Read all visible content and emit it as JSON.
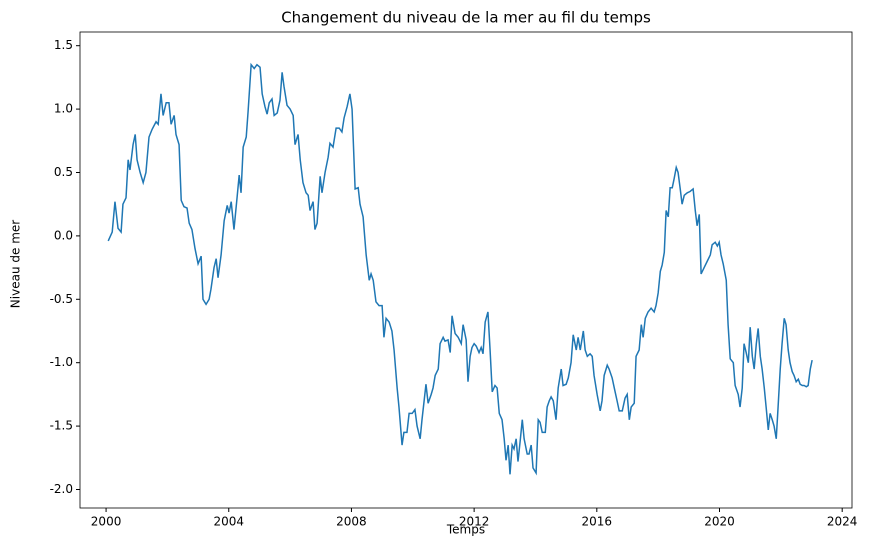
{
  "chart_data": {
    "type": "line",
    "title": "Changement du niveau de la mer au fil du temps",
    "x_label": "Temps",
    "y_label": "Niveau de mer",
    "xlim": [
      1999.15,
      2024.32
    ],
    "ylim": [
      -2.146,
      1.608
    ],
    "xticks": [
      2000,
      2004,
      2008,
      2012,
      2016,
      2020,
      2024
    ],
    "yticks": [
      {
        "value": -2,
        "label": "-2.0"
      },
      -1.5,
      {
        "value": -1,
        "label": "-1.0"
      },
      -0.5,
      {
        "value": 0,
        "label": "0.0"
      },
      0.5,
      {
        "value": 1,
        "label": "1.0"
      },
      1.5
    ],
    "x": [
      2000.07,
      2000.2,
      2000.29,
      2000.39,
      2000.49,
      2000.55,
      2000.65,
      2000.72,
      2000.78,
      2000.88,
      2000.95,
      2001.01,
      2001.11,
      2001.21,
      2001.3,
      2001.4,
      2001.5,
      2001.63,
      2001.7,
      2001.79,
      2001.86,
      2001.96,
      2002.05,
      2002.12,
      2002.22,
      2002.28,
      2002.38,
      2002.45,
      2002.54,
      2002.64,
      2002.71,
      2002.8,
      2002.9,
      2003.0,
      2003.1,
      2003.16,
      2003.26,
      2003.36,
      2003.42,
      2003.52,
      2003.59,
      2003.65,
      2003.75,
      2003.85,
      2003.95,
      2004.01,
      2004.08,
      2004.17,
      2004.27,
      2004.34,
      2004.4,
      2004.47,
      2004.57,
      2004.63,
      2004.73,
      2004.83,
      2004.92,
      2005.02,
      2005.09,
      2005.18,
      2005.25,
      2005.32,
      2005.41,
      2005.48,
      2005.58,
      2005.67,
      2005.74,
      2005.8,
      2005.9,
      2006.0,
      2006.1,
      2006.16,
      2006.26,
      2006.33,
      2006.42,
      2006.52,
      2006.59,
      2006.65,
      2006.75,
      2006.81,
      2006.88,
      2006.98,
      2007.04,
      2007.14,
      2007.24,
      2007.3,
      2007.4,
      2007.5,
      2007.6,
      2007.69,
      2007.76,
      2007.86,
      2007.95,
      2008.02,
      2008.12,
      2008.22,
      2008.28,
      2008.38,
      2008.48,
      2008.58,
      2008.64,
      2008.71,
      2008.8,
      2008.9,
      2009.0,
      2009.06,
      2009.13,
      2009.23,
      2009.32,
      2009.39,
      2009.49,
      2009.55,
      2009.65,
      2009.71,
      2009.81,
      2009.88,
      2009.98,
      2010.07,
      2010.14,
      2010.24,
      2010.3,
      2010.37,
      2010.43,
      2010.5,
      2010.6,
      2010.66,
      2010.73,
      2010.83,
      2010.89,
      2010.99,
      2011.05,
      2011.15,
      2011.22,
      2011.28,
      2011.38,
      2011.48,
      2011.58,
      2011.64,
      2011.74,
      2011.8,
      2011.87,
      2011.93,
      2012.0,
      2012.07,
      2012.16,
      2012.23,
      2012.29,
      2012.36,
      2012.45,
      2012.52,
      2012.59,
      2012.68,
      2012.75,
      2012.82,
      2012.91,
      2012.98,
      2013.04,
      2013.11,
      2013.17,
      2013.24,
      2013.3,
      2013.37,
      2013.43,
      2013.5,
      2013.57,
      2013.63,
      2013.73,
      2013.79,
      2013.86,
      2013.92,
      2014.02,
      2014.09,
      2014.15,
      2014.22,
      2014.32,
      2014.38,
      2014.45,
      2014.51,
      2014.58,
      2014.67,
      2014.74,
      2014.84,
      2014.9,
      2015.0,
      2015.07,
      2015.16,
      2015.23,
      2015.33,
      2015.39,
      2015.46,
      2015.56,
      2015.62,
      2015.69,
      2015.78,
      2015.85,
      2015.91,
      2016.01,
      2016.11,
      2016.17,
      2016.24,
      2016.34,
      2016.4,
      2016.5,
      2016.57,
      2016.66,
      2016.73,
      2016.83,
      2016.92,
      2016.99,
      2017.06,
      2017.12,
      2017.22,
      2017.28,
      2017.38,
      2017.45,
      2017.51,
      2017.58,
      2017.67,
      2017.77,
      2017.87,
      2017.93,
      2018.0,
      2018.07,
      2018.13,
      2018.2,
      2018.26,
      2018.33,
      2018.39,
      2018.46,
      2018.52,
      2018.59,
      2018.65,
      2018.72,
      2018.78,
      2018.85,
      2018.95,
      2019.04,
      2019.14,
      2019.21,
      2019.27,
      2019.34,
      2019.4,
      2019.5,
      2019.6,
      2019.7,
      2019.76,
      2019.86,
      2019.93,
      2019.99,
      2020.05,
      2020.12,
      2020.22,
      2020.28,
      2020.35,
      2020.45,
      2020.51,
      2020.61,
      2020.67,
      2020.74,
      2020.8,
      2020.87,
      2020.94,
      2021.0,
      2021.07,
      2021.13,
      2021.2,
      2021.26,
      2021.33,
      2021.39,
      2021.46,
      2021.52,
      2021.59,
      2021.65,
      2021.72,
      2021.78,
      2021.85,
      2021.91,
      2021.98,
      2022.04,
      2022.11,
      2022.17,
      2022.24,
      2022.3,
      2022.37,
      2022.43,
      2022.5,
      2022.57,
      2022.63,
      2022.7,
      2022.76,
      2022.83,
      2022.89,
      2022.96,
      2023.02
    ],
    "series": [
      {
        "color": "#1f77b4",
        "values": [
          -0.04,
          0.03,
          0.27,
          0.06,
          0.03,
          0.25,
          0.3,
          0.6,
          0.52,
          0.72,
          0.8,
          0.6,
          0.5,
          0.42,
          0.5,
          0.78,
          0.84,
          0.9,
          0.88,
          1.12,
          0.95,
          1.05,
          1.05,
          0.88,
          0.95,
          0.8,
          0.72,
          0.28,
          0.23,
          0.22,
          0.1,
          0.05,
          -0.1,
          -0.22,
          -0.16,
          -0.5,
          -0.54,
          -0.5,
          -0.42,
          -0.25,
          -0.18,
          -0.33,
          -0.15,
          0.12,
          0.24,
          0.18,
          0.27,
          0.05,
          0.3,
          0.48,
          0.34,
          0.7,
          0.78,
          0.98,
          1.35,
          1.32,
          1.35,
          1.33,
          1.12,
          1.02,
          0.96,
          1.05,
          1.08,
          0.95,
          0.97,
          1.07,
          1.29,
          1.18,
          1.03,
          1.0,
          0.95,
          0.72,
          0.8,
          0.6,
          0.42,
          0.34,
          0.32,
          0.2,
          0.27,
          0.05,
          0.1,
          0.47,
          0.34,
          0.5,
          0.62,
          0.73,
          0.7,
          0.85,
          0.85,
          0.82,
          0.93,
          1.02,
          1.12,
          1.0,
          0.37,
          0.38,
          0.25,
          0.15,
          -0.15,
          -0.35,
          -0.3,
          -0.35,
          -0.52,
          -0.55,
          -0.55,
          -0.8,
          -0.65,
          -0.68,
          -0.75,
          -0.9,
          -1.2,
          -1.35,
          -1.65,
          -1.55,
          -1.55,
          -1.4,
          -1.4,
          -1.37,
          -1.5,
          -1.6,
          -1.45,
          -1.3,
          -1.17,
          -1.32,
          -1.25,
          -1.2,
          -1.1,
          -1.05,
          -0.85,
          -0.8,
          -0.83,
          -0.82,
          -0.92,
          -0.63,
          -0.77,
          -0.8,
          -0.85,
          -0.7,
          -0.82,
          -1.15,
          -0.95,
          -0.88,
          -0.85,
          -0.87,
          -0.92,
          -0.88,
          -0.93,
          -0.68,
          -0.6,
          -0.9,
          -1.23,
          -1.18,
          -1.2,
          -1.4,
          -1.45,
          -1.6,
          -1.77,
          -1.65,
          -1.88,
          -1.65,
          -1.68,
          -1.6,
          -1.78,
          -1.62,
          -1.45,
          -1.6,
          -1.72,
          -1.72,
          -1.65,
          -1.83,
          -1.87,
          -1.45,
          -1.47,
          -1.55,
          -1.55,
          -1.35,
          -1.3,
          -1.27,
          -1.3,
          -1.45,
          -1.2,
          -1.05,
          -1.18,
          -1.17,
          -1.12,
          -1.0,
          -0.78,
          -0.9,
          -0.8,
          -0.9,
          -0.75,
          -0.9,
          -0.95,
          -0.93,
          -0.95,
          -1.1,
          -1.25,
          -1.38,
          -1.3,
          -1.1,
          -1.02,
          -1.05,
          -1.12,
          -1.2,
          -1.3,
          -1.38,
          -1.38,
          -1.28,
          -1.25,
          -1.45,
          -1.35,
          -1.32,
          -0.95,
          -0.9,
          -0.7,
          -0.8,
          -0.65,
          -0.6,
          -0.57,
          -0.6,
          -0.55,
          -0.45,
          -0.28,
          -0.23,
          -0.13,
          0.2,
          0.15,
          0.38,
          0.38,
          0.45,
          0.54,
          0.5,
          0.37,
          0.25,
          0.32,
          0.34,
          0.35,
          0.37,
          0.2,
          0.08,
          0.17,
          -0.3,
          -0.25,
          -0.2,
          -0.15,
          -0.07,
          -0.05,
          -0.08,
          -0.05,
          -0.15,
          -0.22,
          -0.35,
          -0.7,
          -0.97,
          -1.0,
          -1.18,
          -1.25,
          -1.35,
          -1.2,
          -0.85,
          -0.92,
          -1.0,
          -0.72,
          -0.95,
          -1.05,
          -0.85,
          -0.73,
          -0.95,
          -1.05,
          -1.2,
          -1.35,
          -1.53,
          -1.4,
          -1.45,
          -1.5,
          -1.6,
          -1.35,
          -1.05,
          -0.85,
          -0.65,
          -0.7,
          -0.9,
          -1.0,
          -1.07,
          -1.1,
          -1.15,
          -1.13,
          -1.17,
          -1.18,
          -1.18,
          -1.19,
          -1.18,
          -1.05,
          -0.98
        ]
      }
    ]
  }
}
